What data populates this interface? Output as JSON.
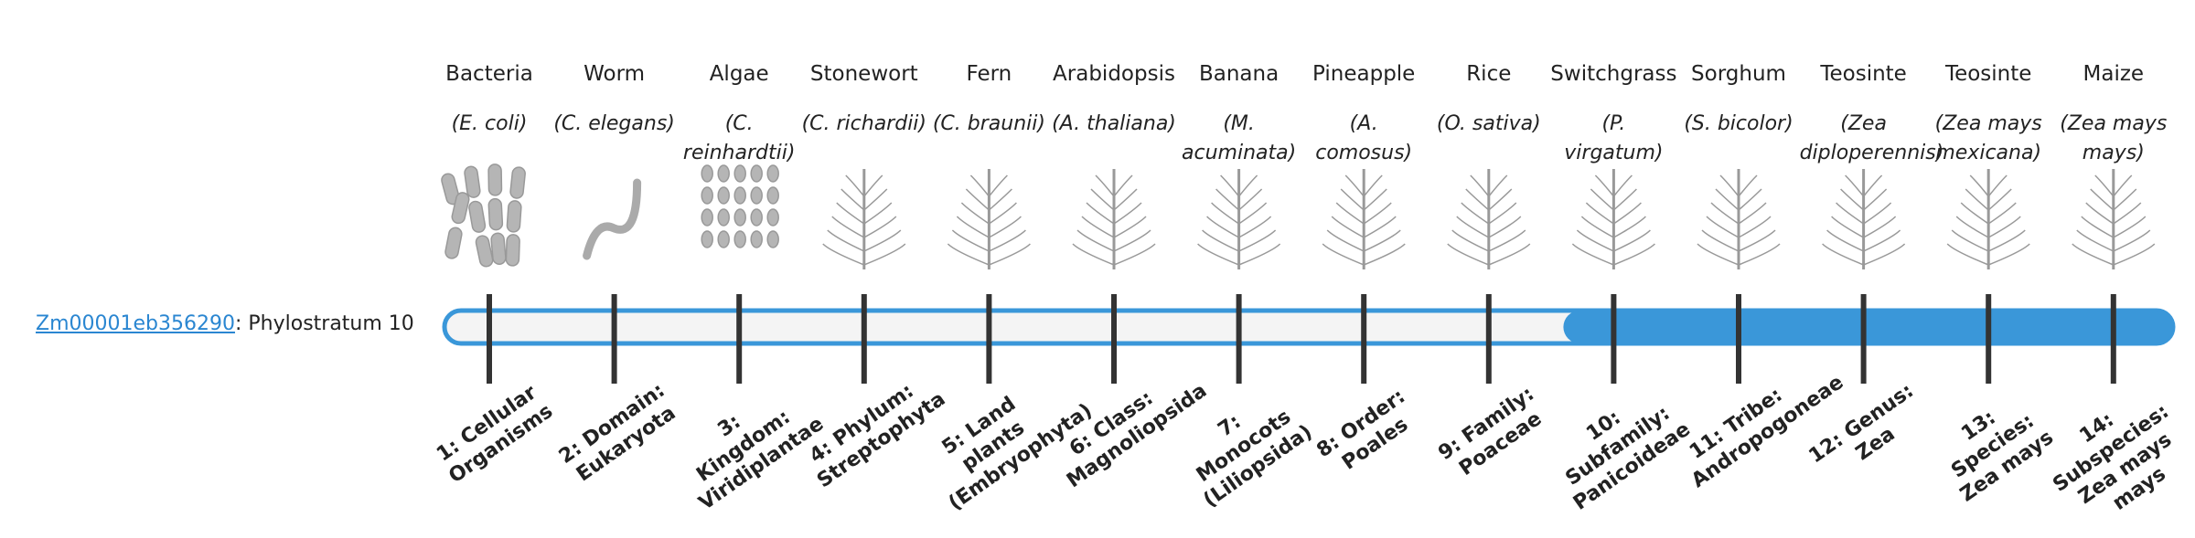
{
  "gene": {
    "id": "Zm00001eb356290",
    "stratum": ": Phylostratum 10"
  },
  "highlight": 10,
  "organisms": [
    {
      "name": "Bacteria",
      "species": "(E. coli)",
      "stratum": "1: Cellular Organisms"
    },
    {
      "name": "Worm",
      "species": "(C. elegans)",
      "stratum": "2: Domain: Eukaryota"
    },
    {
      "name": "Algae",
      "species": "(C. reinhardtii)",
      "stratum": "3: Kingdom: Viridiplantae"
    },
    {
      "name": "Stonewort",
      "species": "(C. richardii)",
      "stratum": "4: Phylum: Streptophyta"
    },
    {
      "name": "Fern",
      "species": "(C. braunii)",
      "stratum": "5: Land plants (Embryophyta)"
    },
    {
      "name": "Arabidopsis",
      "species": "(A. thaliana)",
      "stratum": "6: Class: Magnoliopsida"
    },
    {
      "name": "Banana",
      "species": "(M. acuminata)",
      "stratum": "7: Monocots (Liliopsida)"
    },
    {
      "name": "Pineapple",
      "species": "(A. comosus)",
      "stratum": "8: Order: Poales"
    },
    {
      "name": "Rice",
      "species": "(O. sativa)",
      "stratum": "9: Family: Poaceae"
    },
    {
      "name": "Switchgrass",
      "species": "(P. virgatum)",
      "stratum": "10: Subfamily: Panicoideae"
    },
    {
      "name": "Sorghum",
      "species": "(S. bicolor)",
      "stratum": "11: Tribe: Andropogoneae"
    },
    {
      "name": "Teosinte",
      "species": "(Zea diploperennis)",
      "stratum": "12: Genus: Zea"
    },
    {
      "name": "Teosinte",
      "species": "(Zea mays mexicana)",
      "stratum": "13: Species: Zea mays"
    },
    {
      "name": "Maize",
      "species": "(Zea mays mays)",
      "stratum": "14: Subspecies: Zea mays mays"
    }
  ]
}
